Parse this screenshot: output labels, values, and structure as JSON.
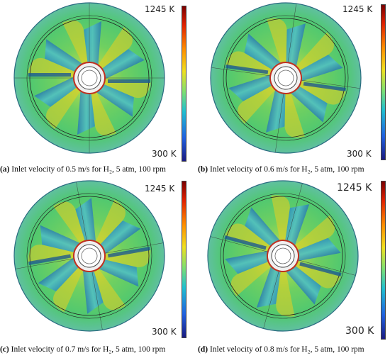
{
  "colorbar": {
    "max_label": "1245 K",
    "min_label": "300 K",
    "colors": [
      "#7a0000",
      "#e02000",
      "#ff9000",
      "#f0e020",
      "#80e070",
      "#20c0d0",
      "#2060e0",
      "#1a1a80"
    ]
  },
  "panels": [
    {
      "letter": "(a)",
      "caption": " Inlet velocity of 0.5 m/s for H₂, 5 atm, 100 rpm"
    },
    {
      "letter": "(b)",
      "caption": " Inlet velocity of 0.6 m/s for H₂, 5 atm, 100 rpm"
    },
    {
      "letter": "(c)",
      "caption": " Inlet velocity of 0.7 m/s for H₂, 5 atm, 100 rpm"
    },
    {
      "letter": "(d)",
      "caption": " Inlet velocity of 0.8 m/s for H₂, 5 atm, 100 rpm"
    }
  ]
}
